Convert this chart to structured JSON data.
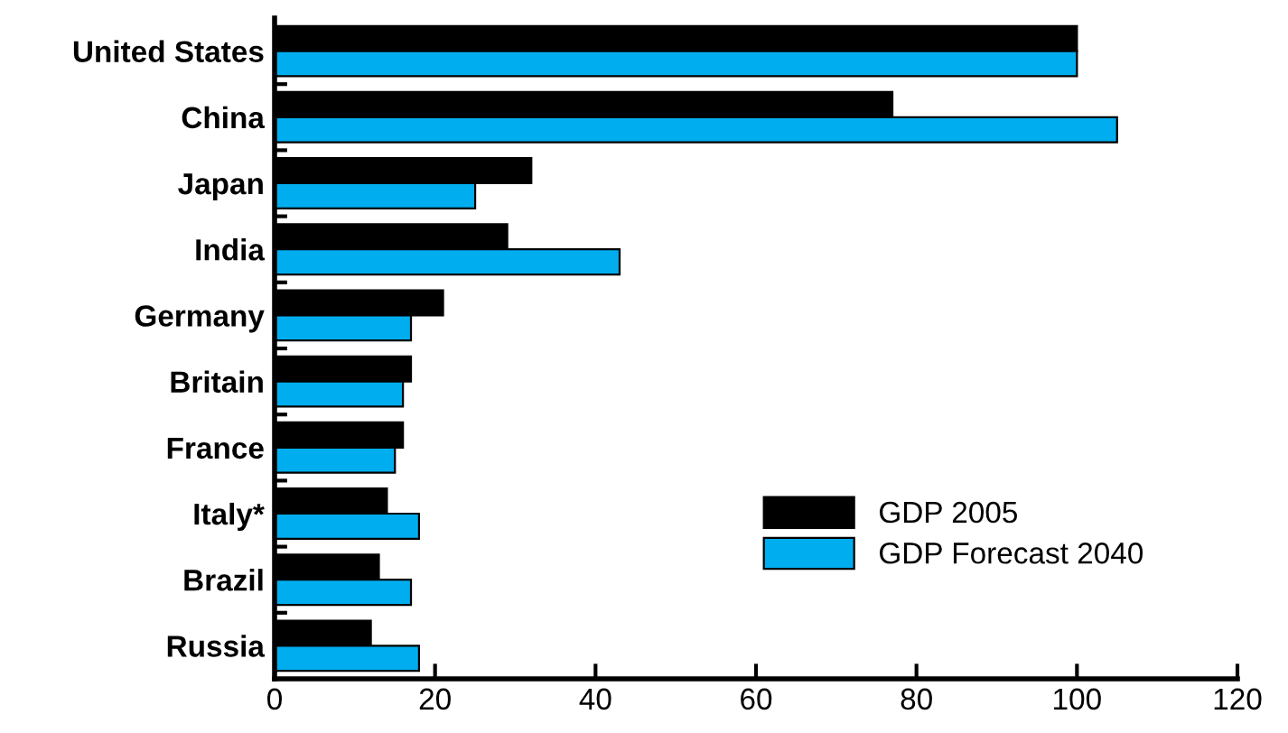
{
  "chart_data": {
    "type": "bar",
    "orientation": "horizontal",
    "categories": [
      "United States",
      "China",
      "Japan",
      "India",
      "Germany",
      "Britain",
      "France",
      "Italy*",
      "Brazil",
      "Russia"
    ],
    "series": [
      {
        "name": "GDP 2005",
        "color": "#000000",
        "values": [
          100,
          77,
          32,
          29,
          21,
          17,
          16,
          14,
          13,
          12
        ]
      },
      {
        "name": "GDP Forecast 2040",
        "color": "#00aeef",
        "values": [
          100,
          105,
          25,
          43,
          17,
          16,
          15,
          18,
          17,
          18
        ]
      }
    ],
    "xlim": [
      0,
      120
    ],
    "xticks": [
      0,
      20,
      40,
      60,
      80,
      100,
      120
    ],
    "grid": false,
    "legend": "right"
  }
}
